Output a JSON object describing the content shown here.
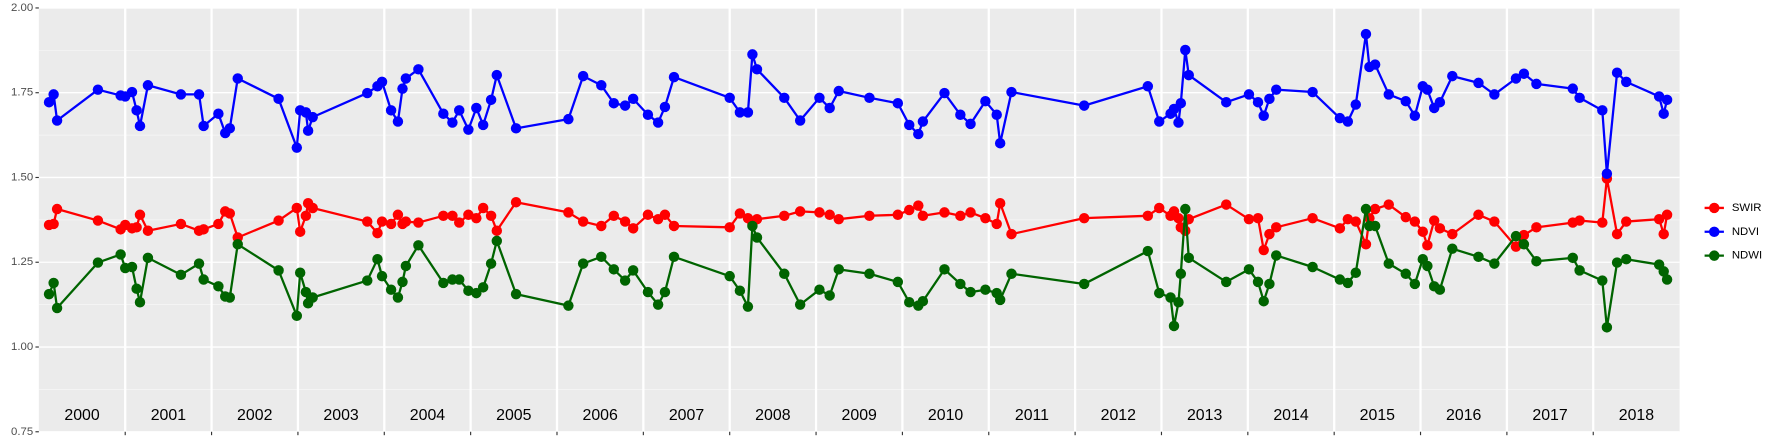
{
  "chart_data": {
    "type": "line",
    "xlim": [
      2000,
      2019
    ],
    "xticks": [
      2001,
      2002,
      2003,
      2004,
      2005,
      2006,
      2007,
      2008,
      2009,
      2010,
      2011,
      2012,
      2013,
      2014,
      2015,
      2016,
      2017,
      2018
    ],
    "ylim": [
      0.75,
      2.0
    ],
    "yticks": [
      {
        "value": 0.75,
        "label": "0.75"
      },
      {
        "value": 1.0,
        "label": "1.00"
      },
      {
        "value": 1.25,
        "label": "1.25"
      },
      {
        "value": 1.5,
        "label": "1.50"
      },
      {
        "value": 1.75,
        "label": "1.75"
      },
      {
        "value": 2.0,
        "label": "2.00"
      }
    ],
    "y_minor_grid": [
      0.875,
      1.125,
      1.375,
      1.625,
      1.875
    ],
    "grid": true,
    "legend": "right",
    "year_labels": [
      "2000",
      "2001",
      "2002",
      "2003",
      "2004",
      "2005",
      "2006",
      "2007",
      "2008",
      "2009",
      "2010",
      "2011",
      "2012",
      "2013",
      "2014",
      "2015",
      "2016",
      "2017",
      "2018"
    ],
    "x": [
      2000.118,
      2000.171,
      2000.211,
      2000.684,
      2000.947,
      2001.0,
      2001.079,
      2001.132,
      2001.171,
      2001.263,
      2001.645,
      2001.855,
      2001.908,
      2002.079,
      2002.158,
      2002.211,
      2002.303,
      2002.776,
      2002.987,
      2003.026,
      2003.092,
      2003.118,
      2003.171,
      2003.803,
      2003.921,
      2003.974,
      2004.079,
      2004.158,
      2004.211,
      2004.25,
      2004.395,
      2004.684,
      2004.789,
      2004.868,
      2004.974,
      2005.066,
      2005.145,
      2005.237,
      2005.303,
      2005.526,
      2006.132,
      2006.303,
      2006.513,
      2006.658,
      2006.789,
      2006.882,
      2007.053,
      2007.171,
      2007.25,
      2007.355,
      2008.0,
      2008.118,
      2008.211,
      2008.263,
      2008.316,
      2008.632,
      2008.816,
      2009.039,
      2009.158,
      2009.263,
      2009.618,
      2009.947,
      2010.079,
      2010.184,
      2010.237,
      2010.487,
      2010.671,
      2010.789,
      2010.961,
      2011.092,
      2011.132,
      2011.263,
      2012.105,
      2012.842,
      2012.974,
      2013.105,
      2013.145,
      2013.197,
      2013.224,
      2013.276,
      2013.316,
      2013.75,
      2014.013,
      2014.118,
      2014.184,
      2014.25,
      2014.329,
      2014.75,
      2015.066,
      2015.158,
      2015.25,
      2015.368,
      2015.408,
      2015.474,
      2015.632,
      2015.829,
      2015.934,
      2016.026,
      2016.079,
      2016.158,
      2016.224,
      2016.368,
      2016.671,
      2016.855,
      2017.105,
      2017.197,
      2017.342,
      2017.763,
      2017.842,
      2018.105,
      2018.158,
      2018.276,
      2018.382,
      2018.763,
      2018.816,
      2018.855
    ],
    "series": [
      {
        "name": "SWIR",
        "color": "#ff0000",
        "values": [
          1.36,
          1.363,
          1.407,
          1.373,
          1.347,
          1.36,
          1.35,
          1.353,
          1.39,
          1.343,
          1.363,
          1.343,
          1.347,
          1.363,
          1.4,
          1.394,
          1.323,
          1.373,
          1.41,
          1.34,
          1.387,
          1.424,
          1.41,
          1.37,
          1.336,
          1.37,
          1.363,
          1.39,
          1.363,
          1.37,
          1.367,
          1.387,
          1.387,
          1.367,
          1.39,
          1.38,
          1.41,
          1.387,
          1.343,
          1.427,
          1.397,
          1.37,
          1.357,
          1.387,
          1.37,
          1.35,
          1.39,
          1.377,
          1.39,
          1.357,
          1.353,
          1.394,
          1.38,
          1.363,
          1.377,
          1.387,
          1.4,
          1.397,
          1.39,
          1.377,
          1.387,
          1.39,
          1.404,
          1.417,
          1.387,
          1.397,
          1.387,
          1.397,
          1.38,
          1.363,
          1.424,
          1.333,
          1.38,
          1.387,
          1.41,
          1.387,
          1.4,
          1.38,
          1.353,
          1.343,
          1.377,
          1.42,
          1.377,
          1.38,
          1.286,
          1.333,
          1.353,
          1.38,
          1.35,
          1.377,
          1.37,
          1.303,
          1.38,
          1.407,
          1.42,
          1.383,
          1.37,
          1.34,
          1.3,
          1.373,
          1.35,
          1.333,
          1.39,
          1.37,
          1.296,
          1.33,
          1.353,
          1.367,
          1.373,
          1.367,
          1.497,
          1.333,
          1.37,
          1.377,
          1.333,
          1.39
        ]
      },
      {
        "name": "NDVI",
        "color": "#0000ff",
        "values": [
          1.722,
          1.745,
          1.668,
          1.759,
          1.742,
          1.739,
          1.752,
          1.698,
          1.652,
          1.772,
          1.745,
          1.745,
          1.652,
          1.688,
          1.631,
          1.645,
          1.792,
          1.732,
          1.588,
          1.698,
          1.692,
          1.638,
          1.678,
          1.749,
          1.769,
          1.782,
          1.698,
          1.665,
          1.762,
          1.792,
          1.819,
          1.688,
          1.662,
          1.698,
          1.641,
          1.705,
          1.655,
          1.729,
          1.802,
          1.645,
          1.672,
          1.799,
          1.772,
          1.719,
          1.712,
          1.732,
          1.685,
          1.662,
          1.708,
          1.796,
          1.735,
          1.692,
          1.692,
          1.863,
          1.819,
          1.735,
          1.668,
          1.735,
          1.705,
          1.755,
          1.735,
          1.719,
          1.655,
          1.628,
          1.665,
          1.749,
          1.685,
          1.658,
          1.725,
          1.685,
          1.601,
          1.752,
          1.712,
          1.769,
          1.665,
          1.688,
          1.702,
          1.662,
          1.719,
          1.876,
          1.802,
          1.722,
          1.745,
          1.722,
          1.682,
          1.732,
          1.759,
          1.752,
          1.675,
          1.665,
          1.715,
          1.923,
          1.826,
          1.833,
          1.745,
          1.725,
          1.682,
          1.769,
          1.759,
          1.705,
          1.722,
          1.799,
          1.779,
          1.745,
          1.792,
          1.806,
          1.776,
          1.762,
          1.735,
          1.698,
          1.511,
          1.809,
          1.782,
          1.739,
          1.688,
          1.729
        ]
      },
      {
        "name": "NDWI",
        "color": "#006400",
        "values": [
          1.156,
          1.189,
          1.115,
          1.249,
          1.273,
          1.233,
          1.236,
          1.172,
          1.132,
          1.263,
          1.213,
          1.246,
          1.199,
          1.179,
          1.149,
          1.146,
          1.303,
          1.226,
          1.092,
          1.219,
          1.162,
          1.129,
          1.146,
          1.196,
          1.259,
          1.209,
          1.169,
          1.146,
          1.192,
          1.239,
          1.3,
          1.189,
          1.199,
          1.199,
          1.166,
          1.159,
          1.176,
          1.246,
          1.313,
          1.156,
          1.122,
          1.246,
          1.266,
          1.229,
          1.196,
          1.226,
          1.162,
          1.125,
          1.162,
          1.266,
          1.209,
          1.166,
          1.119,
          1.357,
          1.323,
          1.216,
          1.125,
          1.169,
          1.152,
          1.229,
          1.216,
          1.192,
          1.132,
          1.122,
          1.135,
          1.229,
          1.186,
          1.162,
          1.169,
          1.159,
          1.139,
          1.216,
          1.186,
          1.283,
          1.159,
          1.146,
          1.062,
          1.132,
          1.216,
          1.407,
          1.263,
          1.192,
          1.229,
          1.192,
          1.135,
          1.186,
          1.27,
          1.236,
          1.199,
          1.189,
          1.219,
          1.407,
          1.357,
          1.357,
          1.246,
          1.216,
          1.186,
          1.259,
          1.239,
          1.179,
          1.169,
          1.29,
          1.266,
          1.246,
          1.327,
          1.303,
          1.253,
          1.263,
          1.226,
          1.196,
          1.058,
          1.249,
          1.259,
          1.243,
          1.223,
          1.199
        ]
      }
    ]
  }
}
